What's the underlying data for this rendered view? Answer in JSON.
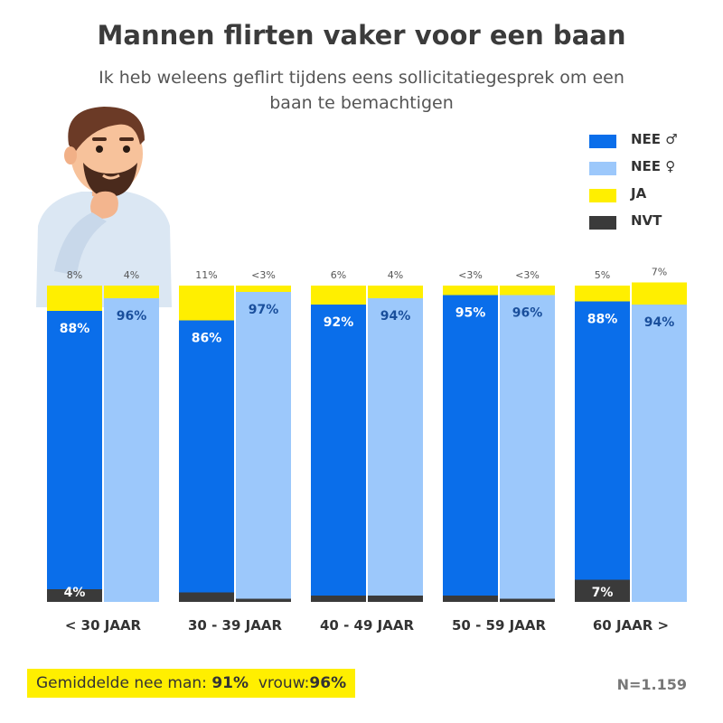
{
  "title": "Mannen flirten vaker voor een baan",
  "subtitle": "Ik heb weleens geflirt tijdens eens sollicitatiegesprek om een baan te bemachtigen",
  "legend": [
    {
      "label": "NEE ♂",
      "color": "#0a6eea"
    },
    {
      "label": "NEE ♀",
      "color": "#9cc8fb"
    },
    {
      "label": "JA",
      "color": "#ffef00"
    },
    {
      "label": "NVT",
      "color": "#3a3a3a"
    }
  ],
  "footer": {
    "prefix": "Gemiddelde nee man: ",
    "man_value": "91%",
    "middle": "  vrouw:",
    "woman_value": "96%"
  },
  "sample_size": "N=1.159",
  "chart_data": {
    "type": "bar",
    "stacked": true,
    "categories": [
      "< 30 JAAR",
      "30 - 39 JAAR",
      "40 - 49 JAAR",
      "50 - 59 JAAR",
      "60 JAAR >"
    ],
    "groups": [
      "man",
      "vrouw"
    ],
    "colors": {
      "nee_man": "#0a6eea",
      "nee_vrouw": "#9cc8fb",
      "ja": "#ffef00",
      "nvt": "#3a3a3a"
    },
    "bars": [
      [
        {
          "group": "man",
          "nvt": 4,
          "nee": 88,
          "ja": 8,
          "nee_label": "88%",
          "ja_label": "8%",
          "nvt_label": "4%"
        },
        {
          "group": "vrouw",
          "nvt": 0,
          "nee": 96,
          "ja": 4,
          "nee_label": "96%",
          "ja_label": "4%",
          "nvt_label": ""
        }
      ],
      [
        {
          "group": "man",
          "nvt": 3,
          "nee": 86,
          "ja": 11,
          "nee_label": "86%",
          "ja_label": "11%",
          "nvt_label": ""
        },
        {
          "group": "vrouw",
          "nvt": 1,
          "nee": 97,
          "ja": 2,
          "nee_label": "97%",
          "ja_label": "<3%",
          "nvt_label": ""
        }
      ],
      [
        {
          "group": "man",
          "nvt": 2,
          "nee": 92,
          "ja": 6,
          "nee_label": "92%",
          "ja_label": "6%",
          "nvt_label": ""
        },
        {
          "group": "vrouw",
          "nvt": 2,
          "nee": 94,
          "ja": 4,
          "nee_label": "94%",
          "ja_label": "4%",
          "nvt_label": ""
        }
      ],
      [
        {
          "group": "man",
          "nvt": 2,
          "nee": 95,
          "ja": 3,
          "nee_label": "95%",
          "ja_label": "<3%",
          "nvt_label": ""
        },
        {
          "group": "vrouw",
          "nvt": 1,
          "nee": 96,
          "ja": 3,
          "nee_label": "96%",
          "ja_label": "<3%",
          "nvt_label": ""
        }
      ],
      [
        {
          "group": "man",
          "nvt": 7,
          "nee": 88,
          "ja": 5,
          "nee_label": "88%",
          "ja_label": "5%",
          "nvt_label": "7%"
        },
        {
          "group": "vrouw",
          "nvt": 0,
          "nee": 94,
          "ja": 7,
          "nee_label": "94%",
          "ja_label": "7%",
          "nvt_label": ""
        }
      ]
    ],
    "ylim": [
      0,
      100
    ]
  }
}
